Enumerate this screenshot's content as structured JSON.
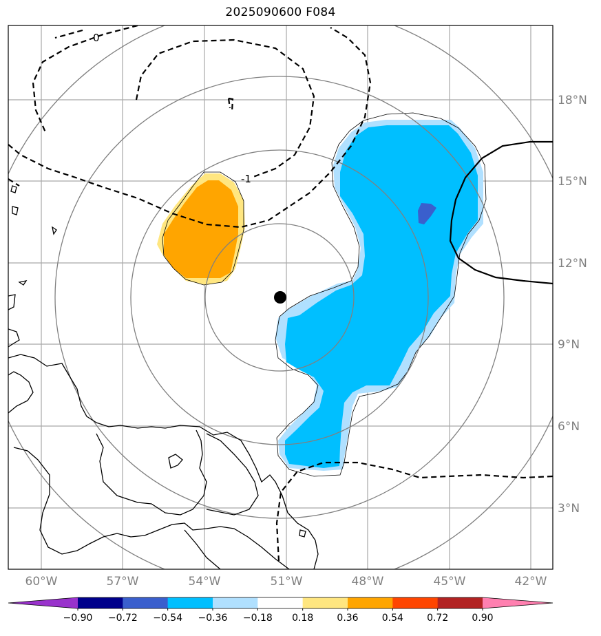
{
  "title": "2025090600 F084",
  "map": {
    "lon_ticks": [
      "60°W",
      "57°W",
      "54°W",
      "51°W",
      "48°W",
      "45°W",
      "42°W"
    ],
    "lat_ticks": [
      "18°N",
      "15°N",
      "12°N",
      "9°N",
      "6°N",
      "3°N"
    ],
    "contour_labels": [
      "0",
      "-1"
    ],
    "center_marker": "storm-center-dot",
    "colors": {
      "grid": "#a8a8a8",
      "range_rings": "#808080",
      "coastline": "#000000",
      "blue_main": "#00bfff",
      "blue_light": "#b0e0ff",
      "blue_dark": "#3a5fcd",
      "orange": "#ffa500",
      "yellow": "#ffe680"
    }
  },
  "colorbar": {
    "labels": [
      "−0.90",
      "−0.72",
      "−0.54",
      "−0.36",
      "−0.18",
      "0.18",
      "0.36",
      "0.54",
      "0.72",
      "0.90"
    ],
    "colors": [
      "#9932cc",
      "#00008b",
      "#3a5fcd",
      "#00bfff",
      "#b0e0ff",
      "#ffffff",
      "#ffe680",
      "#ffa500",
      "#ff4500",
      "#b22222",
      "#ff80b0"
    ]
  }
}
